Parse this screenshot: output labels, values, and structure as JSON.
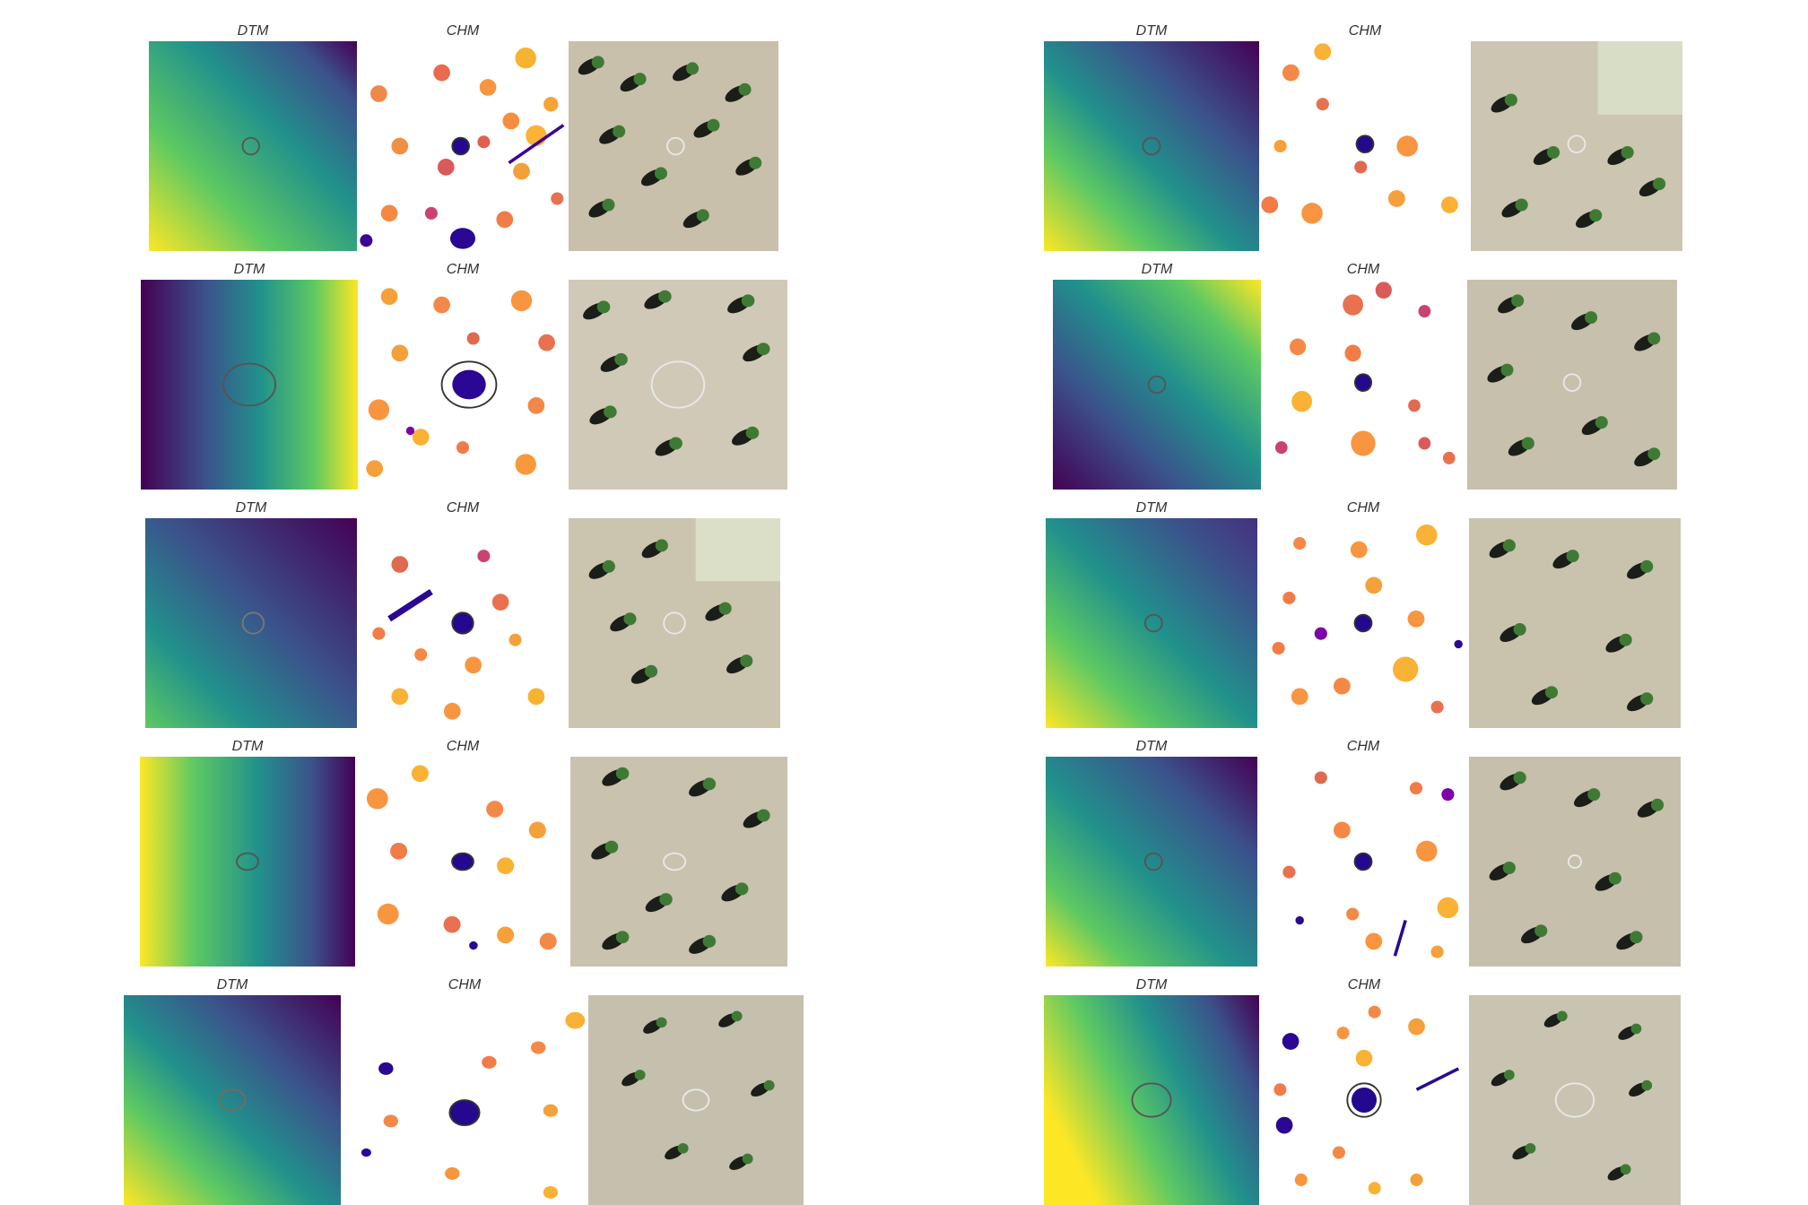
{
  "labels": {
    "dtm": "DTM",
    "chm": "CHM"
  },
  "colors": {
    "viridis": [
      "#440154",
      "#3b528b",
      "#21918c",
      "#5ec962",
      "#fde725"
    ],
    "plasma": [
      "#0d0887",
      "#7e03a8",
      "#cc4778",
      "#f89540",
      "#f0f921"
    ],
    "outline": "#333333",
    "outline_rgb": "#e8e8e8",
    "soil": "#cfc6b4",
    "tree_green": "#3f7a35",
    "shadow": "#1b1d18"
  }
}
